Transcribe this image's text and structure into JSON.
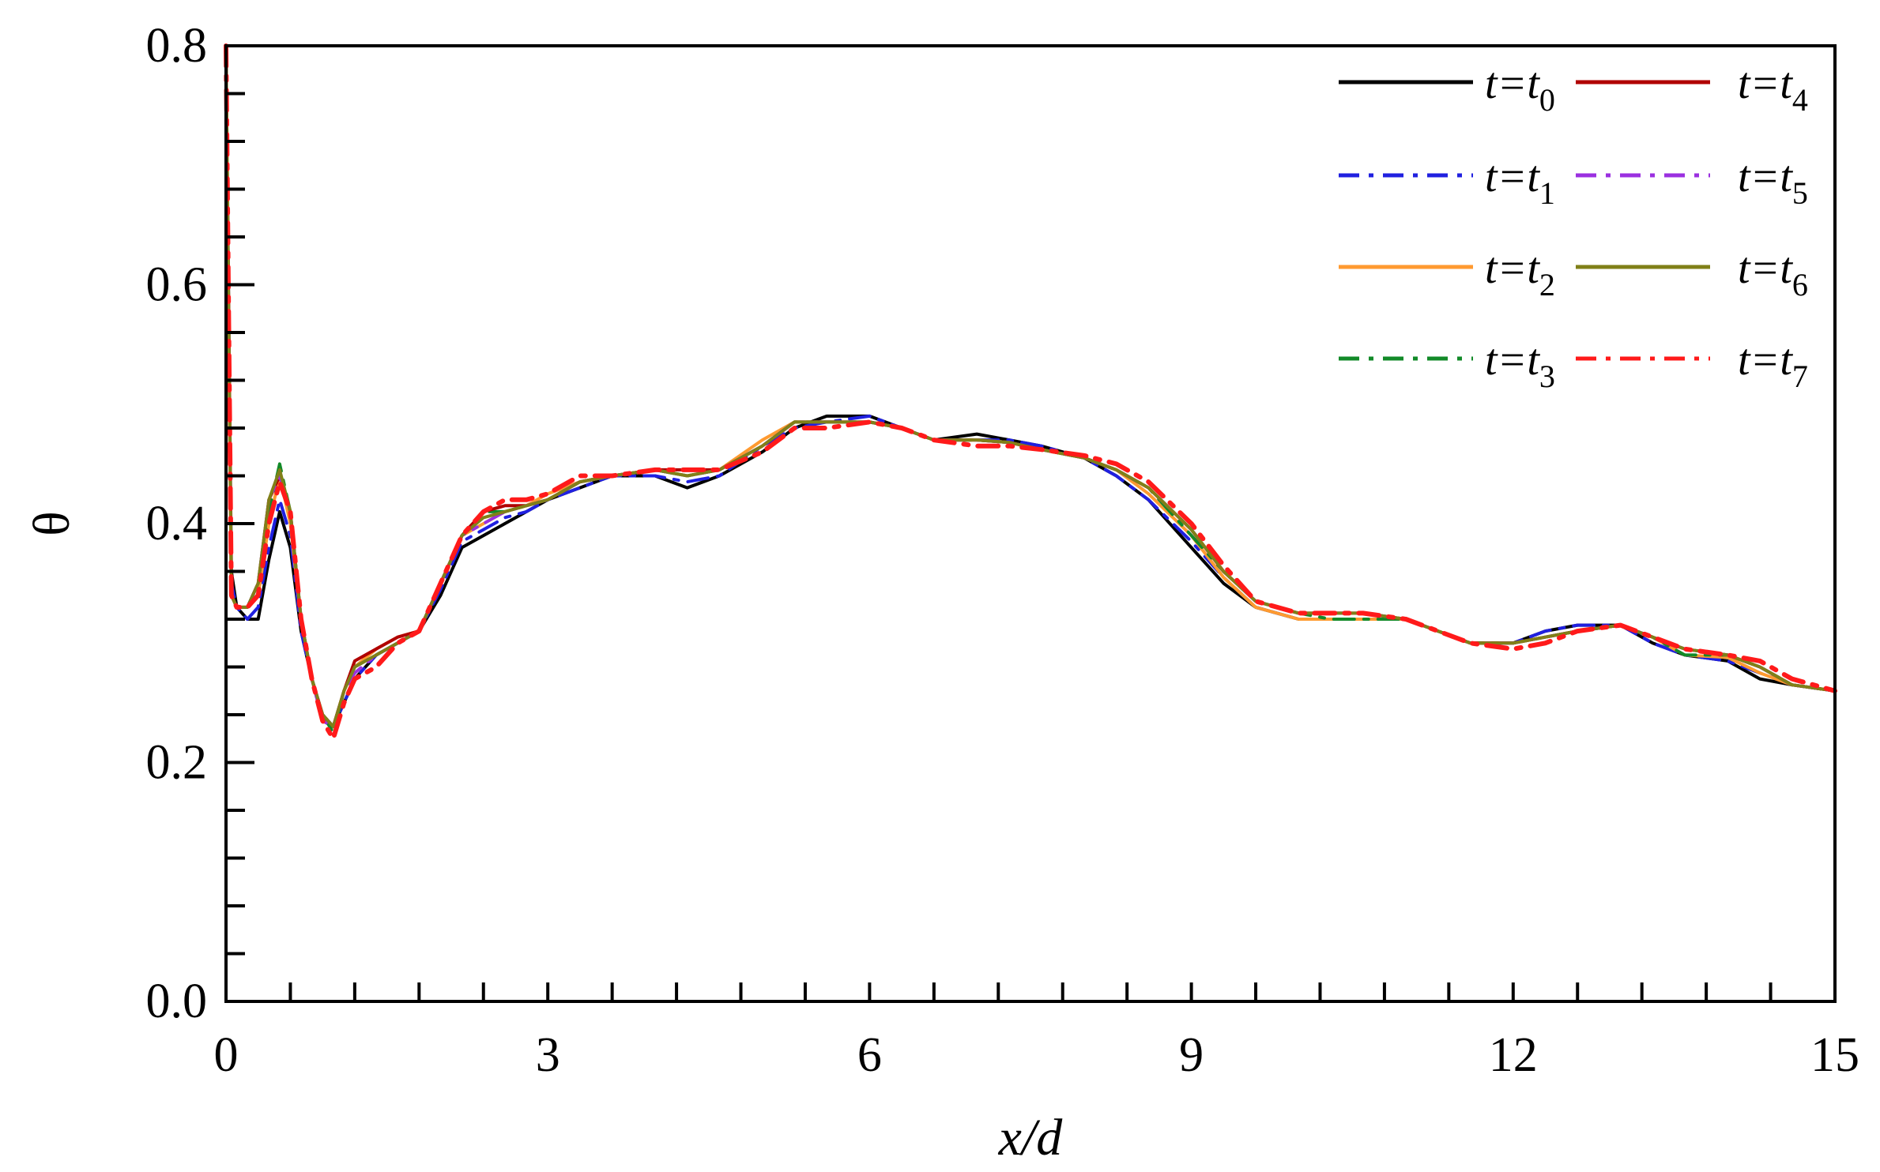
{
  "chart_data": {
    "type": "line",
    "xlabel": "x/d",
    "ylabel": "θ",
    "xlim": [
      0,
      15
    ],
    "ylim": [
      0,
      0.8
    ],
    "x_ticks": [
      "0",
      "3",
      "6",
      "9",
      "12",
      "15"
    ],
    "y_ticks": [
      "0.0",
      "0.2",
      "0.4",
      "0.6",
      "0.8"
    ],
    "grid": false,
    "legend_position": "top-right",
    "x": [
      0,
      0.05,
      0.1,
      0.2,
      0.3,
      0.4,
      0.5,
      0.6,
      0.7,
      0.8,
      0.9,
      1.0,
      1.1,
      1.2,
      1.4,
      1.6,
      1.8,
      2.0,
      2.2,
      2.4,
      2.6,
      2.8,
      3.0,
      3.3,
      3.6,
      4.0,
      4.3,
      4.6,
      5.0,
      5.3,
      5.6,
      6.0,
      6.3,
      6.6,
      7.0,
      7.3,
      7.6,
      8.0,
      8.3,
      8.6,
      9.0,
      9.3,
      9.6,
      10.0,
      10.3,
      10.6,
      11.0,
      11.3,
      11.6,
      12.0,
      12.3,
      12.6,
      13.0,
      13.3,
      13.6,
      14.0,
      14.3,
      14.6,
      15.0
    ],
    "series": [
      {
        "name": "t=t0",
        "label_main": "t=t",
        "label_sub": "0",
        "color": "#000000",
        "dash": "solid",
        "values": [
          0.8,
          0.36,
          0.33,
          0.32,
          0.32,
          0.37,
          0.41,
          0.38,
          0.31,
          0.27,
          0.24,
          0.23,
          0.25,
          0.27,
          0.29,
          0.3,
          0.31,
          0.34,
          0.38,
          0.39,
          0.4,
          0.41,
          0.42,
          0.43,
          0.44,
          0.44,
          0.43,
          0.44,
          0.46,
          0.48,
          0.49,
          0.49,
          0.48,
          0.47,
          0.475,
          0.47,
          0.465,
          0.455,
          0.44,
          0.42,
          0.38,
          0.35,
          0.33,
          0.32,
          0.32,
          0.32,
          0.32,
          0.31,
          0.3,
          0.3,
          0.31,
          0.315,
          0.315,
          0.3,
          0.29,
          0.285,
          0.27,
          0.265,
          0.26
        ]
      },
      {
        "name": "t=t1",
        "label_main": "t=t",
        "label_sub": "1",
        "color": "#2020e0",
        "dash": "dashdot",
        "values": [
          0.8,
          0.35,
          0.33,
          0.32,
          0.33,
          0.38,
          0.42,
          0.39,
          0.31,
          0.27,
          0.235,
          0.23,
          0.25,
          0.27,
          0.29,
          0.3,
          0.31,
          0.345,
          0.385,
          0.395,
          0.405,
          0.41,
          0.42,
          0.43,
          0.44,
          0.44,
          0.435,
          0.44,
          0.465,
          0.48,
          0.485,
          0.49,
          0.48,
          0.47,
          0.47,
          0.47,
          0.465,
          0.455,
          0.44,
          0.42,
          0.385,
          0.355,
          0.33,
          0.32,
          0.32,
          0.32,
          0.32,
          0.31,
          0.3,
          0.3,
          0.31,
          0.315,
          0.315,
          0.3,
          0.29,
          0.285,
          0.275,
          0.265,
          0.26
        ]
      },
      {
        "name": "t=t2",
        "label_main": "t=t",
        "label_sub": "2",
        "color": "#ff9a30",
        "dash": "solid",
        "values": [
          0.8,
          0.34,
          0.33,
          0.33,
          0.34,
          0.4,
          0.44,
          0.4,
          0.32,
          0.27,
          0.235,
          0.23,
          0.26,
          0.28,
          0.295,
          0.305,
          0.31,
          0.35,
          0.39,
          0.4,
          0.41,
          0.415,
          0.425,
          0.435,
          0.44,
          0.445,
          0.44,
          0.445,
          0.47,
          0.485,
          0.485,
          0.485,
          0.48,
          0.47,
          0.47,
          0.468,
          0.462,
          0.455,
          0.445,
          0.425,
          0.39,
          0.355,
          0.33,
          0.32,
          0.32,
          0.32,
          0.32,
          0.31,
          0.3,
          0.3,
          0.305,
          0.31,
          0.315,
          0.305,
          0.29,
          0.288,
          0.275,
          0.265,
          0.26
        ]
      },
      {
        "name": "t=t3",
        "label_main": "t=t",
        "label_sub": "3",
        "color": "#128a28",
        "dash": "dashdot",
        "values": [
          0.8,
          0.34,
          0.33,
          0.33,
          0.35,
          0.41,
          0.45,
          0.41,
          0.32,
          0.27,
          0.24,
          0.225,
          0.26,
          0.28,
          0.29,
          0.3,
          0.31,
          0.35,
          0.39,
          0.41,
          0.41,
          0.415,
          0.42,
          0.435,
          0.44,
          0.445,
          0.44,
          0.445,
          0.465,
          0.485,
          0.485,
          0.485,
          0.48,
          0.47,
          0.47,
          0.468,
          0.462,
          0.455,
          0.445,
          0.43,
          0.39,
          0.36,
          0.335,
          0.325,
          0.32,
          0.32,
          0.32,
          0.31,
          0.3,
          0.3,
          0.305,
          0.31,
          0.315,
          0.305,
          0.29,
          0.29,
          0.28,
          0.265,
          0.26
        ]
      },
      {
        "name": "t=t4",
        "label_main": "t=t",
        "label_sub": "4",
        "color": "#b00000",
        "dash": "solid",
        "values": [
          0.8,
          0.34,
          0.33,
          0.33,
          0.35,
          0.42,
          0.44,
          0.41,
          0.32,
          0.27,
          0.24,
          0.23,
          0.26,
          0.285,
          0.295,
          0.305,
          0.31,
          0.35,
          0.39,
          0.41,
          0.415,
          0.415,
          0.42,
          0.435,
          0.44,
          0.445,
          0.445,
          0.445,
          0.465,
          0.485,
          0.485,
          0.485,
          0.48,
          0.47,
          0.47,
          0.468,
          0.462,
          0.455,
          0.445,
          0.43,
          0.395,
          0.36,
          0.335,
          0.325,
          0.325,
          0.325,
          0.32,
          0.31,
          0.3,
          0.3,
          0.305,
          0.31,
          0.315,
          0.305,
          0.295,
          0.29,
          0.28,
          0.265,
          0.26
        ]
      },
      {
        "name": "t=t5",
        "label_main": "t=t",
        "label_sub": "5",
        "color": "#9b30e0",
        "dash": "dashdot",
        "values": [
          0.8,
          0.34,
          0.33,
          0.33,
          0.35,
          0.42,
          0.44,
          0.41,
          0.32,
          0.27,
          0.235,
          0.23,
          0.26,
          0.275,
          0.29,
          0.3,
          0.31,
          0.35,
          0.39,
          0.4,
          0.41,
          0.415,
          0.42,
          0.435,
          0.44,
          0.445,
          0.44,
          0.445,
          0.465,
          0.485,
          0.485,
          0.485,
          0.48,
          0.47,
          0.47,
          0.468,
          0.462,
          0.455,
          0.445,
          0.43,
          0.395,
          0.36,
          0.335,
          0.325,
          0.325,
          0.325,
          0.32,
          0.31,
          0.3,
          0.3,
          0.305,
          0.31,
          0.315,
          0.305,
          0.295,
          0.29,
          0.28,
          0.265,
          0.26
        ]
      },
      {
        "name": "t=t6",
        "label_main": "t=t",
        "label_sub": "6",
        "color": "#808018",
        "dash": "solid",
        "values": [
          0.8,
          0.34,
          0.33,
          0.33,
          0.35,
          0.42,
          0.445,
          0.41,
          0.32,
          0.27,
          0.24,
          0.23,
          0.26,
          0.28,
          0.29,
          0.3,
          0.31,
          0.35,
          0.39,
          0.405,
          0.41,
          0.415,
          0.42,
          0.435,
          0.44,
          0.445,
          0.44,
          0.445,
          0.465,
          0.485,
          0.485,
          0.485,
          0.48,
          0.47,
          0.47,
          0.468,
          0.462,
          0.455,
          0.445,
          0.43,
          0.395,
          0.36,
          0.335,
          0.325,
          0.325,
          0.325,
          0.32,
          0.31,
          0.3,
          0.3,
          0.305,
          0.31,
          0.315,
          0.305,
          0.295,
          0.29,
          0.28,
          0.265,
          0.26
        ]
      },
      {
        "name": "t=t7",
        "label_main": "t=t",
        "label_sub": "7",
        "color": "#ff1a1a",
        "dash": "dashdot",
        "values": [
          0.8,
          0.34,
          0.33,
          0.33,
          0.34,
          0.4,
          0.435,
          0.41,
          0.32,
          0.27,
          0.235,
          0.22,
          0.25,
          0.27,
          0.28,
          0.3,
          0.31,
          0.35,
          0.39,
          0.41,
          0.42,
          0.42,
          0.425,
          0.44,
          0.44,
          0.445,
          0.445,
          0.445,
          0.46,
          0.48,
          0.48,
          0.485,
          0.48,
          0.47,
          0.465,
          0.465,
          0.462,
          0.457,
          0.45,
          0.435,
          0.4,
          0.365,
          0.335,
          0.325,
          0.325,
          0.325,
          0.32,
          0.31,
          0.3,
          0.295,
          0.3,
          0.31,
          0.315,
          0.305,
          0.295,
          0.29,
          0.285,
          0.27,
          0.26
        ]
      }
    ]
  }
}
